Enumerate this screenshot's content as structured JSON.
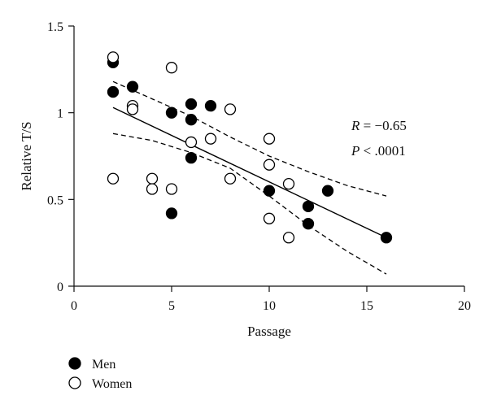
{
  "chart_data": {
    "type": "scatter",
    "title": "",
    "xlabel": "Passage",
    "ylabel": "Relative T/S",
    "xlim": [
      0,
      20
    ],
    "ylim": [
      0,
      1.5
    ],
    "x_ticks": [
      0,
      5,
      10,
      15,
      20
    ],
    "x_tick_labels": [
      "0",
      "5",
      "10",
      "15",
      "20"
    ],
    "y_ticks": [
      0,
      0.5,
      1,
      1.5
    ],
    "y_tick_labels": [
      "0",
      "0.5",
      "1",
      "1.5"
    ],
    "grid": false,
    "legend_position": "bottom-left",
    "series": [
      {
        "name": "Men",
        "marker": "filled-circle",
        "color": "#000000",
        "points": [
          {
            "x": 2,
            "y": 1.29
          },
          {
            "x": 2,
            "y": 1.12
          },
          {
            "x": 3,
            "y": 1.15
          },
          {
            "x": 5,
            "y": 1.0
          },
          {
            "x": 5,
            "y": 0.42
          },
          {
            "x": 6,
            "y": 1.05
          },
          {
            "x": 6,
            "y": 0.96
          },
          {
            "x": 6,
            "y": 0.74
          },
          {
            "x": 7,
            "y": 1.04
          },
          {
            "x": 10,
            "y": 0.55
          },
          {
            "x": 12,
            "y": 0.46
          },
          {
            "x": 12,
            "y": 0.36
          },
          {
            "x": 13,
            "y": 0.55
          },
          {
            "x": 16,
            "y": 0.28
          }
        ]
      },
      {
        "name": "Women",
        "marker": "open-circle",
        "color": "#ffffff",
        "points": [
          {
            "x": 2,
            "y": 1.32
          },
          {
            "x": 2,
            "y": 0.62
          },
          {
            "x": 3,
            "y": 1.04
          },
          {
            "x": 3,
            "y": 1.02
          },
          {
            "x": 4,
            "y": 0.62
          },
          {
            "x": 4,
            "y": 0.56
          },
          {
            "x": 5,
            "y": 1.26
          },
          {
            "x": 5,
            "y": 0.56
          },
          {
            "x": 6,
            "y": 0.83
          },
          {
            "x": 7,
            "y": 0.85
          },
          {
            "x": 8,
            "y": 1.02
          },
          {
            "x": 8,
            "y": 0.62
          },
          {
            "x": 10,
            "y": 0.85
          },
          {
            "x": 10,
            "y": 0.7
          },
          {
            "x": 10,
            "y": 0.39
          },
          {
            "x": 11,
            "y": 0.59
          },
          {
            "x": 11,
            "y": 0.28
          }
        ]
      }
    ],
    "regression": {
      "line": [
        {
          "x": 2,
          "y": 1.03
        },
        {
          "x": 16,
          "y": 0.28
        }
      ],
      "ci_upper": [
        {
          "x": 2,
          "y": 1.18
        },
        {
          "x": 4,
          "y": 1.08
        },
        {
          "x": 6,
          "y": 0.98
        },
        {
          "x": 8,
          "y": 0.86
        },
        {
          "x": 10,
          "y": 0.75
        },
        {
          "x": 12,
          "y": 0.66
        },
        {
          "x": 14,
          "y": 0.58
        },
        {
          "x": 16,
          "y": 0.52
        }
      ],
      "ci_lower": [
        {
          "x": 2,
          "y": 0.88
        },
        {
          "x": 4,
          "y": 0.84
        },
        {
          "x": 6,
          "y": 0.77
        },
        {
          "x": 8,
          "y": 0.68
        },
        {
          "x": 10,
          "y": 0.52
        },
        {
          "x": 12,
          "y": 0.35
        },
        {
          "x": 14,
          "y": 0.2
        },
        {
          "x": 16,
          "y": 0.07
        }
      ]
    },
    "annotations": {
      "r_symbol": "R",
      "r_text": " = −0.65",
      "p_symbol": "P",
      "p_text": " < .0001"
    }
  }
}
